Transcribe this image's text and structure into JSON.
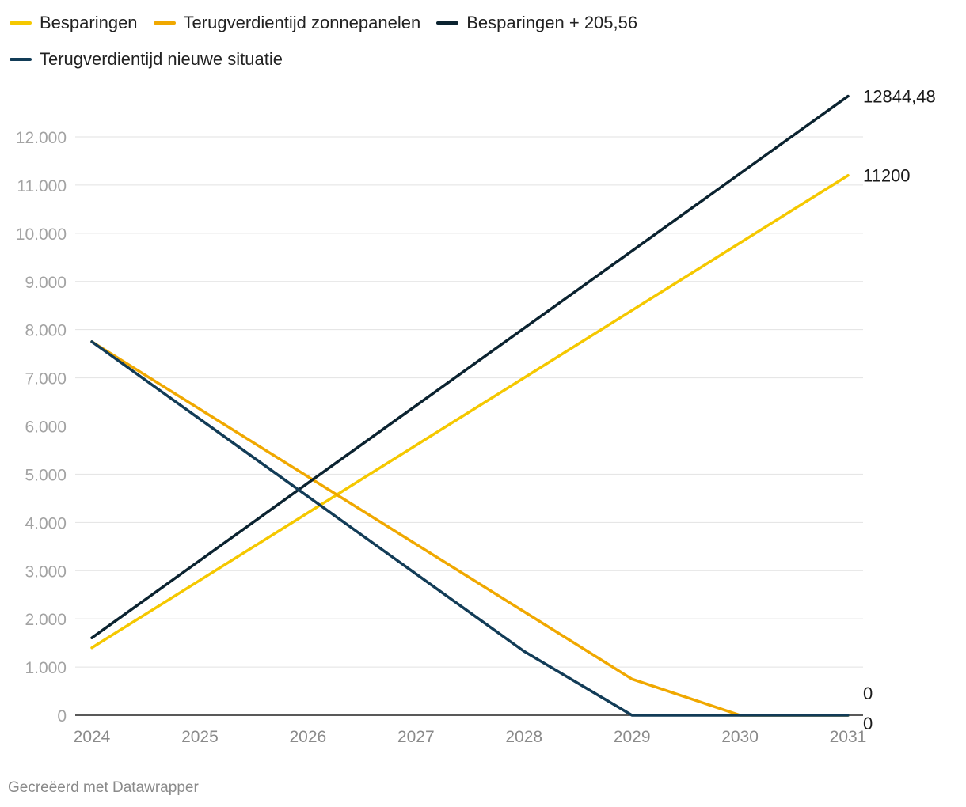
{
  "chart_data": {
    "type": "line",
    "x": [
      2024,
      2025,
      2026,
      2027,
      2028,
      2029,
      2030,
      2031
    ],
    "x_tick_labels": [
      "2024",
      "2025",
      "2026",
      "2027",
      "2028",
      "2029",
      "2030",
      "2031"
    ],
    "ylim": [
      0,
      12000
    ],
    "y_ticks": [
      0,
      1000,
      2000,
      3000,
      4000,
      5000,
      6000,
      7000,
      8000,
      9000,
      10000,
      11000,
      12000
    ],
    "y_tick_labels": [
      "0",
      "1.000",
      "2.000",
      "3.000",
      "4.000",
      "5.000",
      "6.000",
      "7.000",
      "8.000",
      "9.000",
      "10.000",
      "11.000",
      "12.000"
    ],
    "grid": true,
    "series": [
      {
        "name": "Besparingen",
        "color": "#f5c800",
        "values": [
          1400,
          2800,
          4200,
          5600,
          7000,
          8400,
          9800,
          11200
        ],
        "end_label": "11200"
      },
      {
        "name": "Terugverdientijd zonnepanelen",
        "color": "#f0a800",
        "values": [
          7750,
          6350,
          4950,
          3550,
          2150,
          750,
          0,
          0
        ],
        "end_label": "0"
      },
      {
        "name": "Besparingen + 205,56",
        "color": "#0b2330",
        "values": [
          1605.56,
          3211.12,
          4816.68,
          6422.24,
          8027.8,
          9633.36,
          11238.92,
          12844.48
        ],
        "end_label": "12844,48"
      },
      {
        "name": "Terugverdientijd nieuwe situatie",
        "color": "#123c57",
        "values": [
          7750,
          6144.44,
          4538.88,
          2933.32,
          1327.76,
          0,
          0,
          0
        ],
        "end_label": "0"
      }
    ]
  },
  "footer": {
    "credit": "Gecreëerd met Datawrapper"
  }
}
